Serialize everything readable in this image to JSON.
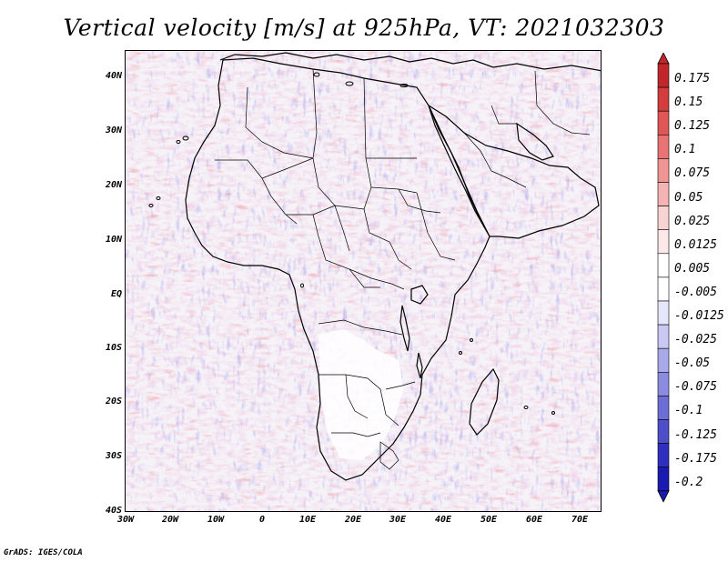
{
  "title": "Vertical velocity [m/s] at 925hPa, VT: 2021032303",
  "footer": "GrADS: IGES/COLA",
  "lat_labels": [
    "40N",
    "30N",
    "20N",
    "10N",
    "EQ",
    "10S",
    "20S",
    "30S",
    "40S"
  ],
  "lon_labels": [
    "30W",
    "20W",
    "10W",
    "0",
    "10E",
    "20E",
    "30E",
    "40E",
    "50E",
    "60E",
    "70E"
  ],
  "colorbar": {
    "labels": [
      "0.175",
      "0.15",
      "0.125",
      "0.1",
      "0.075",
      "0.05",
      "0.025",
      "0.0125",
      "0.005",
      "-0.005",
      "-0.0125",
      "-0.025",
      "-0.05",
      "-0.075",
      "-0.1",
      "-0.125",
      "-0.175",
      "-0.2"
    ],
    "colors": [
      "#c0272d",
      "#d43d3d",
      "#e05656",
      "#e87373",
      "#f09494",
      "#f5b3b3",
      "#f9d2d2",
      "#fce8e8",
      "#ffffff",
      "#ffffff",
      "#e6e6fa",
      "#c8c8f2",
      "#a9a9ea",
      "#8b8be0",
      "#6d6dd6",
      "#4e4ecb",
      "#3030c0",
      "#1a1ab0"
    ]
  },
  "colors": {
    "positive": "#d43d3d",
    "negative": "#4e4ecb",
    "coastline": "#000000"
  }
}
